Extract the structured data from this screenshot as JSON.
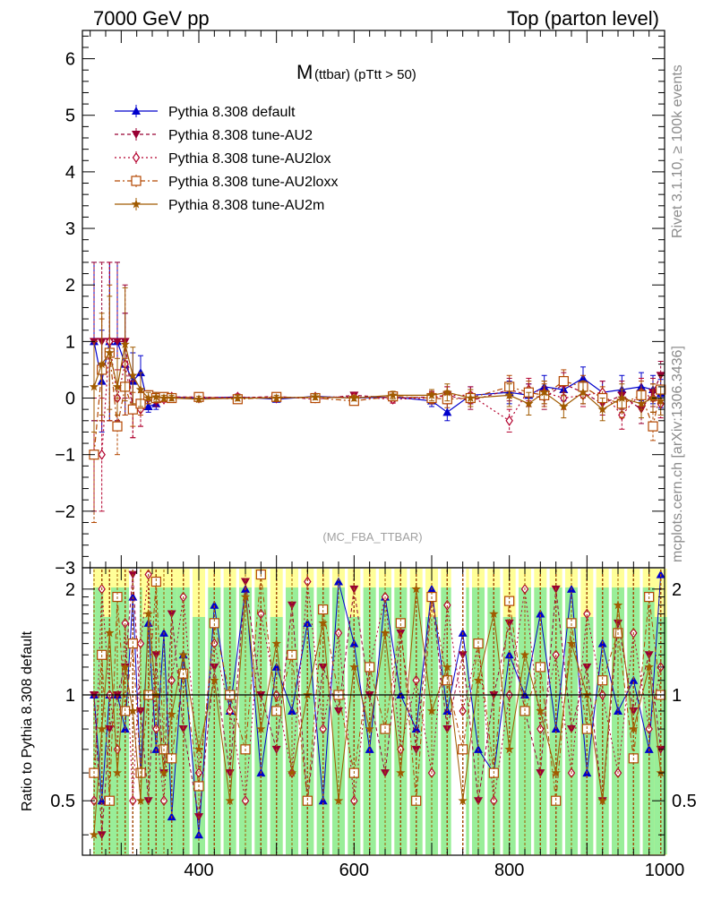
{
  "header": {
    "left": "7000 GeV pp",
    "right": "Top (parton level)"
  },
  "side_labels": {
    "rivet": "Rivet 3.1.10, ≥ 100k events",
    "mcplots": "mcplots.cern.ch [arXiv:1306.3436]"
  },
  "colors": {
    "default": "#0000cc",
    "au2": "#990033",
    "au2lox": "#b3002d",
    "au2loxx": "#b34700",
    "au2m": "#a05a00",
    "band_green": "#99ee99",
    "band_yellow": "#ffff99",
    "ref_line": "#000000"
  },
  "chart_data": [
    {
      "type": "line",
      "title": "M (ttbar) (pTtt > 50)",
      "title_main": "M",
      "title_sub": "(ttbar) (pTtt > 50)",
      "watermark": "(MC_FBA_TTBAR)",
      "xlim": [
        250,
        1000
      ],
      "ylim": [
        -3,
        6.5
      ],
      "y_ticks": [
        -3,
        -2,
        -1,
        0,
        1,
        2,
        3,
        4,
        5,
        6
      ],
      "y_tick_labels": [
        "−3",
        "−2",
        "−1",
        "0",
        "1",
        "2",
        "3",
        "4",
        "5",
        "6"
      ],
      "legend": "top-left",
      "legend_entries": [
        "Pythia 8.308 default",
        "Pythia 8.308 tune-AU2",
        "Pythia 8.308 tune-AU2lox",
        "Pythia 8.308 tune-AU2loxx",
        "Pythia 8.308 tune-AU2m"
      ],
      "series": [
        {
          "name": "Pythia 8.308 default",
          "marker": "triangle-up",
          "dash": "",
          "x": [
            265,
            275,
            285,
            295,
            305,
            315,
            325,
            335,
            345,
            355,
            365,
            400,
            450,
            500,
            550,
            600,
            650,
            700,
            720,
            750,
            800,
            825,
            845,
            870,
            895,
            920,
            945,
            970,
            985,
            995
          ],
          "y": [
            1.0,
            0.3,
            1.0,
            1.0,
            0.6,
            0.3,
            0.45,
            -0.15,
            -0.1,
            0.0,
            0.02,
            0.0,
            0.02,
            -0.02,
            0.03,
            0.0,
            0.02,
            -0.05,
            -0.25,
            0.05,
            0.1,
            0.05,
            0.2,
            0.15,
            0.35,
            0.1,
            0.15,
            0.2,
            0.15,
            0.08
          ],
          "err": [
            1.4,
            0.9,
            1.4,
            1.4,
            0.9,
            0.5,
            0.3,
            0.1,
            0.1,
            0.05,
            0.05,
            0.05,
            0.05,
            0.05,
            0.05,
            0.05,
            0.07,
            0.1,
            0.15,
            0.15,
            0.2,
            0.2,
            0.2,
            0.2,
            0.2,
            0.2,
            0.25,
            0.25,
            0.25,
            0.25
          ]
        },
        {
          "name": "Pythia 8.308 tune-AU2",
          "marker": "triangle-down",
          "dash": "4 3",
          "x": [
            265,
            275,
            285,
            295,
            305,
            315,
            325,
            335,
            345,
            355,
            365,
            400,
            450,
            500,
            550,
            600,
            650,
            700,
            720,
            750,
            800,
            825,
            845,
            870,
            895,
            920,
            945,
            970,
            985,
            995
          ],
          "y": [
            1.0,
            1.0,
            1.0,
            1.0,
            1.0,
            -0.2,
            -0.2,
            0.0,
            -0.05,
            0.0,
            0.02,
            0.02,
            0.0,
            0.03,
            -0.02,
            0.05,
            0.0,
            0.02,
            0.05,
            -0.05,
            0.15,
            0.05,
            0.0,
            0.25,
            0.1,
            -0.1,
            0.05,
            -0.2,
            0.1,
            0.4
          ],
          "err": [
            1.4,
            1.4,
            1.4,
            1.4,
            1.0,
            0.5,
            0.3,
            0.1,
            0.1,
            0.05,
            0.05,
            0.05,
            0.05,
            0.05,
            0.05,
            0.05,
            0.07,
            0.1,
            0.15,
            0.15,
            0.2,
            0.2,
            0.2,
            0.2,
            0.2,
            0.2,
            0.25,
            0.25,
            0.25,
            0.25
          ]
        },
        {
          "name": "Pythia 8.308 tune-AU2lox",
          "marker": "diamond",
          "dash": "2 3",
          "x": [
            265,
            275,
            285,
            295,
            305,
            315,
            325,
            335,
            345,
            355,
            365,
            400,
            450,
            500,
            550,
            600,
            650,
            700,
            720,
            750,
            800,
            825,
            845,
            870,
            895,
            920,
            945,
            970,
            985,
            995
          ],
          "y": [
            -1.0,
            -1.0,
            1.0,
            0.0,
            0.6,
            -0.2,
            -0.2,
            0.0,
            0.0,
            -0.02,
            0.02,
            0.0,
            0.02,
            0.0,
            0.02,
            0.02,
            -0.02,
            0.0,
            0.05,
            0.05,
            -0.4,
            0.15,
            0.1,
            0.0,
            0.05,
            0.1,
            -0.3,
            0.1,
            0.0,
            -0.1
          ],
          "err": [
            1.0,
            1.0,
            1.4,
            0.5,
            0.9,
            0.5,
            0.3,
            0.1,
            0.1,
            0.05,
            0.05,
            0.05,
            0.05,
            0.05,
            0.05,
            0.05,
            0.07,
            0.1,
            0.15,
            0.15,
            0.2,
            0.2,
            0.2,
            0.2,
            0.2,
            0.2,
            0.25,
            0.25,
            0.25,
            0.25
          ]
        },
        {
          "name": "Pythia 8.308 tune-AU2loxx",
          "marker": "square",
          "dash": "6 3 2 3",
          "x": [
            265,
            275,
            285,
            295,
            305,
            315,
            325,
            335,
            345,
            355,
            365,
            400,
            450,
            500,
            550,
            600,
            650,
            700,
            720,
            750,
            800,
            825,
            845,
            870,
            895,
            920,
            945,
            970,
            985,
            995
          ],
          "y": [
            -1.0,
            0.5,
            0.8,
            -0.5,
            0.2,
            -0.2,
            -0.1,
            0.05,
            0.0,
            0.02,
            0.0,
            0.02,
            -0.02,
            0.02,
            0.0,
            -0.05,
            0.03,
            0.0,
            -0.02,
            0.0,
            0.2,
            0.1,
            0.05,
            0.3,
            0.2,
            0.0,
            -0.1,
            0.05,
            -0.5,
            0.15
          ],
          "err": [
            1.2,
            0.9,
            1.2,
            0.5,
            0.5,
            0.3,
            0.2,
            0.08,
            0.08,
            0.05,
            0.05,
            0.05,
            0.05,
            0.05,
            0.05,
            0.05,
            0.07,
            0.1,
            0.15,
            0.15,
            0.2,
            0.2,
            0.2,
            0.2,
            0.2,
            0.2,
            0.25,
            0.25,
            0.25,
            0.25
          ]
        },
        {
          "name": "Pythia 8.308 tune-AU2m",
          "marker": "star",
          "dash": "",
          "x": [
            265,
            275,
            285,
            295,
            305,
            315,
            325,
            335,
            345,
            355,
            365,
            400,
            450,
            500,
            550,
            600,
            650,
            700,
            720,
            750,
            800,
            825,
            845,
            870,
            895,
            920,
            945,
            970,
            985,
            995
          ],
          "y": [
            0.2,
            0.6,
            0.8,
            0.2,
            0.95,
            0.4,
            0.15,
            0.0,
            0.02,
            0.0,
            0.0,
            -0.02,
            0.0,
            0.0,
            0.02,
            0.0,
            0.05,
            0.05,
            0.1,
            0.0,
            0.05,
            -0.1,
            0.1,
            -0.15,
            0.1,
            -0.2,
            0.0,
            -0.1,
            0.0,
            -0.05
          ],
          "err": [
            0.8,
            0.9,
            1.0,
            0.5,
            1.0,
            0.5,
            0.3,
            0.1,
            0.08,
            0.05,
            0.05,
            0.05,
            0.05,
            0.05,
            0.05,
            0.05,
            0.07,
            0.1,
            0.15,
            0.15,
            0.2,
            0.2,
            0.2,
            0.2,
            0.2,
            0.2,
            0.25,
            0.25,
            0.25,
            0.25
          ]
        }
      ]
    },
    {
      "type": "line",
      "title": "",
      "ylabel": "Ratio to Pythia 8.308 default",
      "xlim": [
        250,
        1000
      ],
      "ylim": [
        0.35,
        2.3
      ],
      "y_log": true,
      "reference_value": 1,
      "x_ticks": [
        400,
        600,
        800,
        1000
      ],
      "x_tick_labels": [
        "400",
        "600",
        "800",
        "1000"
      ],
      "y_ticks": [
        0.5,
        1,
        2
      ],
      "y_tick_labels": [
        "0.5",
        "1",
        "2"
      ],
      "uncertainty_bands": "green (1σ) and yellow (2σ) around default",
      "series_ratio_x": [
        265,
        275,
        285,
        295,
        305,
        315,
        325,
        335,
        345,
        355,
        365,
        380,
        400,
        420,
        440,
        460,
        480,
        500,
        520,
        540,
        560,
        580,
        600,
        620,
        640,
        660,
        680,
        700,
        720,
        740,
        760,
        780,
        800,
        820,
        840,
        860,
        880,
        900,
        920,
        940,
        960,
        980,
        995
      ],
      "series_ratio_y": [
        [
          1.0,
          0.5,
          1.0,
          1.0,
          0.8,
          1.9,
          0.6,
          1.6,
          0.7,
          1.5,
          0.45,
          1.3,
          0.4,
          1.8,
          0.9,
          2.0,
          0.6,
          1.2,
          0.9,
          1.6,
          0.5,
          2.1,
          1.4,
          0.7,
          1.9,
          1.0,
          0.8,
          2.0,
          0.9,
          1.5,
          0.7,
          0.6,
          1.3,
          1.0,
          1.7,
          0.8,
          2.0,
          0.6,
          1.4,
          0.9,
          1.1,
          0.7,
          2.2
        ],
        [
          1.0,
          0.4,
          0.8,
          1.0,
          1.2,
          2.2,
          0.9,
          0.5,
          1.3,
          0.6,
          1.7,
          0.8,
          0.45,
          1.2,
          0.6,
          2.1,
          1.0,
          0.7,
          1.8,
          0.5,
          1.2,
          0.9,
          2.0,
          1.0,
          0.6,
          1.5,
          0.7,
          1.9,
          0.8,
          1.3,
          0.5,
          1.0,
          1.6,
          0.9,
          0.6,
          2.0,
          0.8,
          1.2,
          0.5,
          1.6,
          0.9,
          1.3,
          0.7
        ],
        [
          0.5,
          2.0,
          1.0,
          0.7,
          1.6,
          0.5,
          1.4,
          2.2,
          0.8,
          0.5,
          1.1,
          1.9,
          0.6,
          1.4,
          0.9,
          0.5,
          1.7,
          1.0,
          0.6,
          2.1,
          0.8,
          1.5,
          0.5,
          1.2,
          1.9,
          0.7,
          1.1,
          0.6,
          1.8,
          0.9,
          1.4,
          0.5,
          1.0,
          2.0,
          0.8,
          1.3,
          0.6,
          1.7,
          1.0,
          0.6,
          1.5,
          0.8,
          1.2
        ],
        [
          0.6,
          1.3,
          0.5,
          1.9,
          0.9,
          1.4,
          0.6,
          1.0,
          2.1,
          0.7,
          0.66,
          1.15,
          0.55,
          1.6,
          1.0,
          0.7,
          2.2,
          0.9,
          1.3,
          0.5,
          1.75,
          1.0,
          0.6,
          1.2,
          0.8,
          1.6,
          0.5,
          1.9,
          1.1,
          0.7,
          1.4,
          0.6,
          1.85,
          0.9,
          1.2,
          0.5,
          1.6,
          0.8,
          1.1,
          1.5,
          0.66,
          1.9,
          1.0
        ],
        [
          0.4,
          0.8,
          1.5,
          0.6,
          1.2,
          0.9,
          0.5,
          1.7,
          1.0,
          0.6,
          0.88,
          1.3,
          0.7,
          1.1,
          0.5,
          1.9,
          0.8,
          1.4,
          0.6,
          1.0,
          1.6,
          0.5,
          1.2,
          0.8,
          1.5,
          0.6,
          2.0,
          0.9,
          1.2,
          0.5,
          1.1,
          1.7,
          0.7,
          1.3,
          0.9,
          0.6,
          1.4,
          1.0,
          0.5,
          1.8,
          0.8,
          1.2,
          0.6
        ]
      ]
    }
  ]
}
